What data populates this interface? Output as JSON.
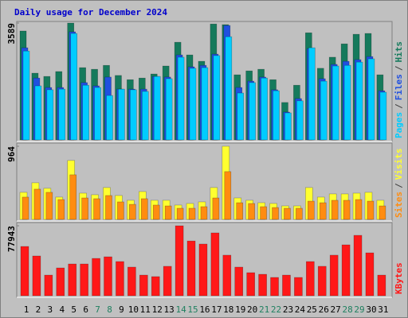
{
  "chart_data": [
    {
      "type": "bar",
      "title": "Daily usage for December 2024",
      "ylim": [
        0,
        3589
      ],
      "yticks": [
        3589
      ],
      "legend_separator": "/",
      "series": [
        {
          "name": "Pages",
          "color": "#00ccff",
          "values": [
            2730,
            1660,
            1540,
            1560,
            3270,
            1680,
            1610,
            1365,
            1560,
            1540,
            1490,
            1950,
            1880,
            2540,
            2200,
            2220,
            2590,
            3170,
            1440,
            1760,
            1900,
            1510,
            830,
            1200,
            2830,
            1805,
            2270,
            2290,
            2390,
            2490,
            1465
          ]
        },
        {
          "name": "Files",
          "color": "#2050e0",
          "values": [
            2830,
            1900,
            1610,
            1610,
            3320,
            1760,
            1660,
            1930,
            1560,
            1560,
            1560,
            1950,
            1930,
            2610,
            2245,
            2290,
            2635,
            3515,
            1610,
            1805,
            1930,
            1540,
            855,
            1270,
            2805,
            1880,
            2320,
            2415,
            2465,
            2560,
            1510
          ]
        },
        {
          "name": "Hits",
          "color": "#157a5c",
          "values": [
            3345,
            2050,
            1950,
            2100,
            3589,
            2220,
            2170,
            2290,
            1980,
            1850,
            1900,
            2025,
            2270,
            3000,
            2610,
            2415,
            3560,
            3540,
            2000,
            2120,
            2170,
            1850,
            1150,
            1680,
            3290,
            2200,
            2540,
            2950,
            3245,
            3270,
            2000
          ]
        }
      ]
    },
    {
      "type": "bar",
      "ylim": [
        0,
        964
      ],
      "yticks": [
        964
      ],
      "legend_separator": "/",
      "series": [
        {
          "name": "Sites",
          "color": "#ff8c10",
          "values": [
            294,
            399,
            357,
            262,
            588,
            283,
            273,
            315,
            231,
            199,
            273,
            189,
            178,
            147,
            147,
            168,
            283,
            630,
            220,
            210,
            168,
            157,
            147,
            147,
            241,
            220,
            252,
            252,
            262,
            241,
            178
          ]
        },
        {
          "name": "Visits",
          "color": "#ffff30",
          "values": [
            357,
            483,
            410,
            294,
            777,
            346,
            325,
            420,
            315,
            252,
            367,
            252,
            252,
            189,
            210,
            231,
            420,
            964,
            283,
            252,
            220,
            210,
            178,
            178,
            420,
            294,
            336,
            336,
            346,
            357,
            252
          ]
        }
      ]
    },
    {
      "type": "bar",
      "ylim": [
        0,
        77943
      ],
      "yticks": [
        77943
      ],
      "categories": [
        "1",
        "2",
        "3",
        "4",
        "5",
        "6",
        "7",
        "8",
        "9",
        "10",
        "11",
        "12",
        "13",
        "14",
        "15",
        "16",
        "17",
        "18",
        "19",
        "20",
        "21",
        "22",
        "23",
        "24",
        "25",
        "26",
        "27",
        "28",
        "29",
        "30",
        "31"
      ],
      "category_colors": [
        "#000000",
        "#000000",
        "#000000",
        "#000000",
        "#000000",
        "#000000",
        "#208060",
        "#208060",
        "#000000",
        "#000000",
        "#000000",
        "#000000",
        "#000000",
        "#208060",
        "#208060",
        "#000000",
        "#000000",
        "#000000",
        "#000000",
        "#000000",
        "#208060",
        "#208060",
        "#000000",
        "#000000",
        "#000000",
        "#000000",
        "#000000",
        "#208060",
        "#208060",
        "#000000",
        "#000000"
      ],
      "series": [
        {
          "name": "KBytes",
          "color": "#ff1818",
          "values": [
            54900,
            44300,
            23000,
            31000,
            35400,
            35400,
            41600,
            43400,
            38100,
            31900,
            23000,
            21300,
            32800,
            77943,
            61000,
            57600,
            70000,
            45200,
            31900,
            25700,
            23900,
            20400,
            23000,
            20400,
            38100,
            32800,
            45200,
            56700,
            67300,
            47800,
            23000
          ]
        }
      ]
    }
  ]
}
